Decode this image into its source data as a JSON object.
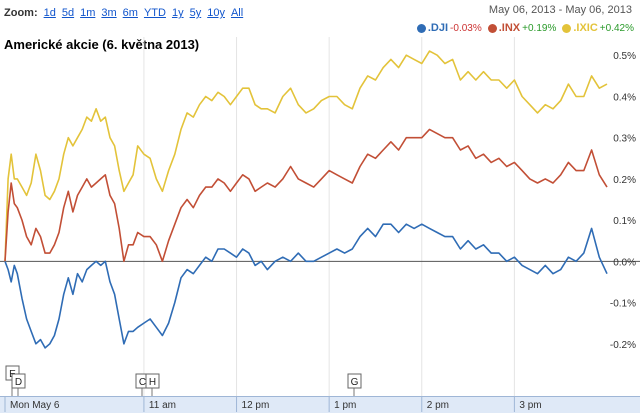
{
  "toolbar": {
    "zoom_label": "Zoom:",
    "options": [
      "1d",
      "5d",
      "1m",
      "3m",
      "6m",
      "YTD",
      "1y",
      "5y",
      "10y",
      "All"
    ]
  },
  "date_range": "May 06, 2013  -  May 06, 2013",
  "legend": [
    {
      "name": ".DJI",
      "change": "-0.03%",
      "color": "#2f6cb5",
      "change_color": "#cc3333"
    },
    {
      "name": ".INX",
      "change": "+0.19%",
      "color": "#c24f36",
      "change_color": "#2a9a2a"
    },
    {
      "name": ".IXIC",
      "change": "+0.42%",
      "color": "#e3c33a",
      "change_color": "#2a9a2a"
    }
  ],
  "title": "Americké akcie (6. května 2013)",
  "markers": [
    {
      "label": "E"
    },
    {
      "label": "D"
    },
    {
      "label": "C"
    },
    {
      "label": "H"
    },
    {
      "label": "G"
    }
  ],
  "chart_data": {
    "type": "line",
    "title": "Americké akcie (6. května 2013)",
    "x_ticks": [
      "Mon May 6",
      "11 am",
      "12 pm",
      "1 pm",
      "2 pm",
      "3 pm"
    ],
    "y_ticks": [
      "0.5%",
      "0.4%",
      "0.3%",
      "0.2%",
      "0.1%",
      "0.0%",
      "-0.1%",
      "-0.2%"
    ],
    "ylim": [
      -0.22,
      0.52
    ],
    "xlim_minutes": [
      0,
      390
    ],
    "grid": "vertical",
    "baseline": 0,
    "series": [
      {
        "name": ".IXIC",
        "color": "#e3c33a",
        "x": [
          0,
          2,
          4,
          6,
          8,
          11,
          14,
          17,
          20,
          23,
          26,
          29,
          32,
          35,
          38,
          41,
          44,
          47,
          50,
          53,
          56,
          59,
          62,
          65,
          68,
          71,
          74,
          77,
          80,
          83,
          86,
          90,
          94,
          98,
          102,
          106,
          110,
          114,
          118,
          122,
          126,
          130,
          134,
          138,
          142,
          146,
          150,
          154,
          158,
          162,
          166,
          170,
          175,
          180,
          185,
          190,
          195,
          200,
          205,
          210,
          215,
          220,
          225,
          230,
          235,
          240,
          245,
          250,
          255,
          260,
          265,
          270,
          275,
          280,
          285,
          290,
          295,
          300,
          305,
          310,
          315,
          320,
          325,
          330,
          335,
          340,
          345,
          350,
          355,
          360,
          365,
          370,
          375,
          380,
          385,
          390
        ],
        "y": [
          0.0,
          0.2,
          0.26,
          0.2,
          0.2,
          0.18,
          0.16,
          0.19,
          0.26,
          0.22,
          0.16,
          0.15,
          0.17,
          0.2,
          0.26,
          0.3,
          0.28,
          0.3,
          0.32,
          0.35,
          0.34,
          0.37,
          0.34,
          0.35,
          0.3,
          0.28,
          0.22,
          0.17,
          0.19,
          0.21,
          0.28,
          0.26,
          0.25,
          0.2,
          0.17,
          0.22,
          0.26,
          0.32,
          0.36,
          0.35,
          0.38,
          0.4,
          0.39,
          0.41,
          0.4,
          0.38,
          0.4,
          0.42,
          0.42,
          0.38,
          0.37,
          0.37,
          0.36,
          0.4,
          0.42,
          0.38,
          0.36,
          0.37,
          0.39,
          0.4,
          0.4,
          0.38,
          0.37,
          0.42,
          0.45,
          0.44,
          0.47,
          0.49,
          0.47,
          0.5,
          0.49,
          0.48,
          0.51,
          0.5,
          0.48,
          0.49,
          0.44,
          0.46,
          0.44,
          0.46,
          0.44,
          0.44,
          0.42,
          0.44,
          0.4,
          0.38,
          0.36,
          0.38,
          0.37,
          0.39,
          0.43,
          0.4,
          0.4,
          0.45,
          0.42,
          0.43
        ]
      },
      {
        "name": ".INX",
        "color": "#c24f36",
        "x": [
          0,
          2,
          4,
          6,
          8,
          11,
          14,
          17,
          20,
          23,
          26,
          29,
          32,
          35,
          38,
          41,
          44,
          47,
          50,
          53,
          56,
          59,
          62,
          65,
          68,
          71,
          74,
          77,
          80,
          83,
          86,
          90,
          94,
          98,
          102,
          106,
          110,
          114,
          118,
          122,
          126,
          130,
          134,
          138,
          142,
          146,
          150,
          154,
          158,
          162,
          166,
          170,
          175,
          180,
          185,
          190,
          195,
          200,
          205,
          210,
          215,
          220,
          225,
          230,
          235,
          240,
          245,
          250,
          255,
          260,
          265,
          270,
          275,
          280,
          285,
          290,
          295,
          300,
          305,
          310,
          315,
          320,
          325,
          330,
          335,
          340,
          345,
          350,
          355,
          360,
          365,
          370,
          375,
          380,
          385,
          390
        ],
        "y": [
          0.0,
          0.12,
          0.19,
          0.14,
          0.13,
          0.1,
          0.06,
          0.04,
          0.08,
          0.06,
          0.02,
          0.02,
          0.04,
          0.07,
          0.13,
          0.17,
          0.12,
          0.16,
          0.18,
          0.2,
          0.18,
          0.19,
          0.2,
          0.21,
          0.16,
          0.14,
          0.08,
          0.0,
          0.04,
          0.04,
          0.07,
          0.06,
          0.06,
          0.04,
          0.0,
          0.05,
          0.09,
          0.13,
          0.15,
          0.13,
          0.16,
          0.18,
          0.18,
          0.2,
          0.19,
          0.17,
          0.19,
          0.21,
          0.2,
          0.17,
          0.18,
          0.19,
          0.18,
          0.2,
          0.23,
          0.2,
          0.19,
          0.18,
          0.2,
          0.22,
          0.21,
          0.2,
          0.19,
          0.23,
          0.26,
          0.25,
          0.27,
          0.29,
          0.27,
          0.3,
          0.3,
          0.3,
          0.32,
          0.31,
          0.3,
          0.3,
          0.27,
          0.28,
          0.25,
          0.26,
          0.24,
          0.25,
          0.23,
          0.24,
          0.22,
          0.2,
          0.19,
          0.2,
          0.19,
          0.21,
          0.24,
          0.22,
          0.22,
          0.27,
          0.21,
          0.18
        ]
      },
      {
        "name": ".DJI",
        "color": "#2f6cb5",
        "x": [
          0,
          2,
          4,
          6,
          8,
          11,
          14,
          17,
          20,
          23,
          26,
          29,
          32,
          35,
          38,
          41,
          44,
          47,
          50,
          53,
          56,
          59,
          62,
          65,
          68,
          71,
          74,
          77,
          80,
          83,
          86,
          90,
          94,
          98,
          102,
          106,
          110,
          114,
          118,
          122,
          126,
          130,
          134,
          138,
          142,
          146,
          150,
          154,
          158,
          162,
          166,
          170,
          175,
          180,
          185,
          190,
          195,
          200,
          205,
          210,
          215,
          220,
          225,
          230,
          235,
          240,
          245,
          250,
          255,
          260,
          265,
          270,
          275,
          280,
          285,
          290,
          295,
          300,
          305,
          310,
          315,
          320,
          325,
          330,
          335,
          340,
          345,
          350,
          355,
          360,
          365,
          370,
          375,
          380,
          385,
          390
        ],
        "y": [
          0.0,
          -0.02,
          -0.05,
          -0.01,
          -0.03,
          -0.09,
          -0.14,
          -0.17,
          -0.2,
          -0.19,
          -0.21,
          -0.2,
          -0.18,
          -0.14,
          -0.08,
          -0.04,
          -0.08,
          -0.03,
          -0.05,
          -0.02,
          -0.01,
          0.0,
          -0.01,
          0.0,
          -0.05,
          -0.08,
          -0.14,
          -0.2,
          -0.17,
          -0.17,
          -0.16,
          -0.15,
          -0.14,
          -0.16,
          -0.18,
          -0.15,
          -0.1,
          -0.04,
          -0.02,
          -0.03,
          -0.01,
          0.01,
          0.0,
          0.03,
          0.03,
          0.02,
          0.01,
          0.03,
          0.02,
          -0.01,
          0.0,
          -0.02,
          0.0,
          0.01,
          0.0,
          0.02,
          0.0,
          0.0,
          0.01,
          0.02,
          0.03,
          0.02,
          0.03,
          0.06,
          0.08,
          0.06,
          0.09,
          0.09,
          0.07,
          0.09,
          0.08,
          0.09,
          0.08,
          0.07,
          0.06,
          0.06,
          0.03,
          0.05,
          0.03,
          0.04,
          0.02,
          0.02,
          0.0,
          0.01,
          -0.01,
          -0.02,
          -0.03,
          -0.01,
          -0.03,
          -0.02,
          0.01,
          0.0,
          0.02,
          0.08,
          0.01,
          -0.03
        ]
      }
    ]
  }
}
